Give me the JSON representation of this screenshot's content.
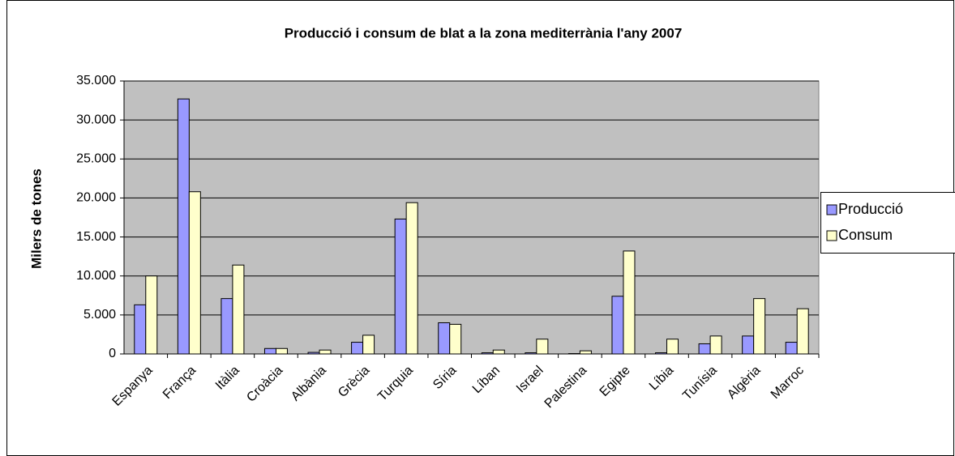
{
  "chart_data": {
    "type": "bar",
    "title": "Producció i consum de blat a la zona mediterrània l'any 2007",
    "y_label": "Milers de tones",
    "categories": [
      "Espanya",
      "França",
      "Itàlia",
      "Croàcia",
      "Albània",
      "Grècia",
      "Turquia",
      "Síria",
      "Líban",
      "Israel",
      "Palestina",
      "Egipte",
      "Líbia",
      "Tunísia",
      "Algèria",
      "Marroc"
    ],
    "series": [
      {
        "name": "Producció",
        "color": "#9999ff",
        "values": [
          6300,
          32700,
          7100,
          700,
          200,
          1500,
          17300,
          4000,
          150,
          150,
          50,
          7400,
          150,
          1300,
          2300,
          1500
        ]
      },
      {
        "name": "Consum",
        "color": "#ffffcc",
        "values": [
          10000,
          20800,
          11400,
          700,
          500,
          2400,
          19400,
          3800,
          500,
          1900,
          400,
          13200,
          1900,
          2300,
          7100,
          5800
        ]
      }
    ],
    "ylim": [
      0,
      35000
    ],
    "yticks": [
      0,
      {
        "value": 5000,
        "label": "5.000"
      },
      {
        "value": 10000,
        "label": "10.000"
      },
      {
        "value": 15000,
        "label": "15.000"
      },
      {
        "value": 20000,
        "label": "20.000"
      },
      {
        "value": 25000,
        "label": "25.000"
      },
      {
        "value": 30000,
        "label": "30.000"
      },
      {
        "value": 35000,
        "label": "35.000"
      }
    ],
    "grid": true,
    "plot_background": "#c0c0c0",
    "legend": "right"
  }
}
